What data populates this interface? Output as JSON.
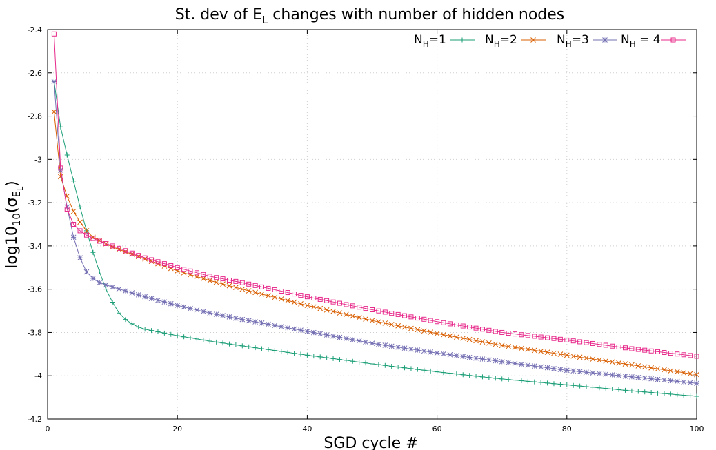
{
  "chart_data": {
    "type": "line",
    "title": {
      "main": "St. dev of E",
      "main_sub": "L",
      "rest": " changes with number of hidden nodes"
    },
    "xlabel": "SGD cycle #",
    "ylabel": {
      "prefix": "log10",
      "prefix_sub": "10",
      "open": "(σ",
      "sub": "E",
      "subsub": "L",
      "close": ")"
    },
    "xlim": [
      0,
      100
    ],
    "ylim": [
      -4.2,
      -2.4
    ],
    "xticks": [
      0,
      20,
      40,
      60,
      80,
      100
    ],
    "yticks": [
      -4.2,
      -4,
      -3.8,
      -3.6,
      -3.4,
      -3.2,
      -3,
      -2.8,
      -2.6,
      -2.4
    ],
    "xtick_labels": [
      "0",
      "20",
      "40",
      "60",
      "80",
      "100"
    ],
    "ytick_labels": [
      "-4.2",
      "-4",
      "-3.8",
      "-3.6",
      "-3.4",
      "-3.2",
      "-3",
      "-2.8",
      "-2.6",
      "-2.4"
    ],
    "grid": true,
    "legend_position": "top-right",
    "series": [
      {
        "label_main": "N",
        "label_sub": "H",
        "label_rest": "=1",
        "color": "#1b9e77",
        "marker": "plus",
        "key_points": [
          [
            1,
            -2.64
          ],
          [
            2,
            -2.85
          ],
          [
            3,
            -2.98
          ],
          [
            4,
            -3.1
          ],
          [
            5,
            -3.22
          ],
          [
            6,
            -3.33
          ],
          [
            7,
            -3.43
          ],
          [
            8,
            -3.52
          ],
          [
            9,
            -3.6
          ],
          [
            10,
            -3.66
          ],
          [
            11,
            -3.71
          ],
          [
            12,
            -3.74
          ],
          [
            13,
            -3.76
          ],
          [
            14,
            -3.775
          ],
          [
            15,
            -3.785
          ],
          [
            20,
            -3.815
          ],
          [
            25,
            -3.84
          ],
          [
            30,
            -3.862
          ],
          [
            40,
            -3.905
          ],
          [
            50,
            -3.945
          ],
          [
            60,
            -3.982
          ],
          [
            70,
            -4.015
          ],
          [
            80,
            -4.042
          ],
          [
            90,
            -4.07
          ],
          [
            100,
            -4.095
          ]
        ]
      },
      {
        "label_main": "N",
        "label_sub": "H",
        "label_rest": "=2",
        "color": "#d95f02",
        "marker": "cross",
        "key_points": [
          [
            1,
            -2.78
          ],
          [
            2,
            -3.08
          ],
          [
            3,
            -3.17
          ],
          [
            4,
            -3.24
          ],
          [
            5,
            -3.29
          ],
          [
            6,
            -3.33
          ],
          [
            7,
            -3.36
          ],
          [
            8,
            -3.375
          ],
          [
            10,
            -3.405
          ],
          [
            15,
            -3.46
          ],
          [
            20,
            -3.515
          ],
          [
            25,
            -3.56
          ],
          [
            30,
            -3.6
          ],
          [
            40,
            -3.675
          ],
          [
            50,
            -3.745
          ],
          [
            60,
            -3.805
          ],
          [
            70,
            -3.86
          ],
          [
            80,
            -3.905
          ],
          [
            90,
            -3.95
          ],
          [
            100,
            -3.995
          ]
        ]
      },
      {
        "label_main": "N",
        "label_sub": "H",
        "label_rest": "=3",
        "color": "#7570b3",
        "marker": "star",
        "key_points": [
          [
            1,
            -2.64
          ],
          [
            2,
            -3.05
          ],
          [
            3,
            -3.22
          ],
          [
            4,
            -3.36
          ],
          [
            5,
            -3.455
          ],
          [
            6,
            -3.52
          ],
          [
            7,
            -3.55
          ],
          [
            8,
            -3.57
          ],
          [
            9,
            -3.58
          ],
          [
            10,
            -3.59
          ],
          [
            15,
            -3.635
          ],
          [
            20,
            -3.675
          ],
          [
            25,
            -3.71
          ],
          [
            30,
            -3.74
          ],
          [
            40,
            -3.795
          ],
          [
            50,
            -3.85
          ],
          [
            60,
            -3.895
          ],
          [
            70,
            -3.935
          ],
          [
            80,
            -3.975
          ],
          [
            90,
            -4.005
          ],
          [
            100,
            -4.035
          ]
        ]
      },
      {
        "label_main": "N",
        "label_sub": "H",
        "label_rest": " = 4",
        "color": "#e7298a",
        "marker": "square",
        "key_points": [
          [
            1,
            -2.42
          ],
          [
            2,
            -3.04
          ],
          [
            3,
            -3.23
          ],
          [
            4,
            -3.3
          ],
          [
            5,
            -3.33
          ],
          [
            6,
            -3.35
          ],
          [
            7,
            -3.365
          ],
          [
            8,
            -3.378
          ],
          [
            10,
            -3.4
          ],
          [
            15,
            -3.455
          ],
          [
            20,
            -3.5
          ],
          [
            25,
            -3.54
          ],
          [
            30,
            -3.57
          ],
          [
            40,
            -3.635
          ],
          [
            50,
            -3.695
          ],
          [
            60,
            -3.75
          ],
          [
            70,
            -3.8
          ],
          [
            80,
            -3.835
          ],
          [
            90,
            -3.875
          ],
          [
            100,
            -3.91
          ]
        ]
      }
    ]
  }
}
